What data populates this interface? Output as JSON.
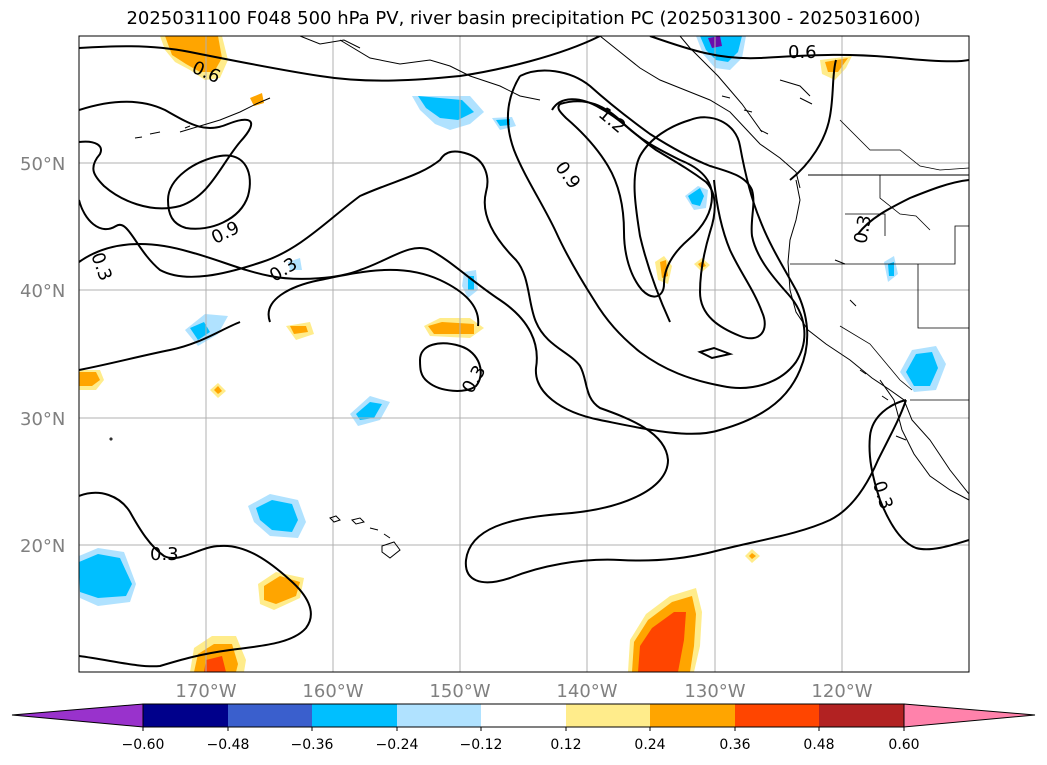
{
  "title": "2025031100 F048 500 hPa PV, river basin precipitation PC (2025031300 - 2025031600)",
  "map": {
    "lat_labels": [
      "50°N",
      "40°N",
      "30°N",
      "20°N"
    ],
    "lon_labels": [
      "170°W",
      "160°W",
      "150°W",
      "140°W",
      "130°W",
      "120°W"
    ],
    "contour_labels": [
      "0.6",
      "0.6",
      "1.2",
      "0.9",
      "0.9",
      "0.3",
      "0.3",
      "0.3",
      "0.3",
      "0.3",
      "0.3"
    ]
  },
  "colorbar": {
    "ticks": [
      "−0.60",
      "−0.48",
      "−0.36",
      "−0.24",
      "−0.12",
      "0.12",
      "0.24",
      "0.36",
      "0.48",
      "0.60"
    ],
    "colors": [
      "#9932cc",
      "#00008b",
      "#3a5fcd",
      "#00bfff",
      "#b0e2ff",
      "#ffffff",
      "#ffec8b",
      "#ffa500",
      "#ff4500",
      "#b22222",
      "#ff82ab"
    ]
  },
  "fill_colors": {
    "neg_light": "#b0e2ff",
    "neg_mid": "#00bfff",
    "neg_dark": "#6a0dad",
    "pos_light": "#ffec8b",
    "pos_mid": "#ffa500",
    "pos_dark": "#ff4500"
  }
}
